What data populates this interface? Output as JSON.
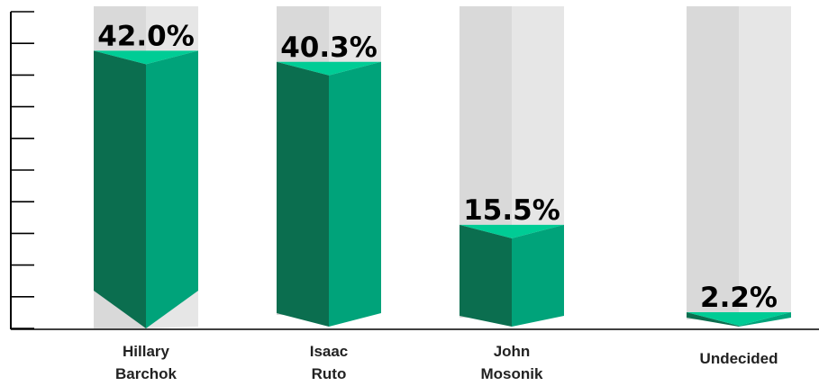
{
  "chart_data": {
    "type": "bar",
    "categories": [
      [
        "Hillary",
        "Barchok"
      ],
      [
        "Isaac",
        "Ruto"
      ],
      [
        "John",
        "Mosonik"
      ],
      [
        "Undecided"
      ]
    ],
    "values": [
      42.0,
      40.3,
      15.5,
      2.2
    ],
    "value_labels": [
      "42.0%",
      "40.3%",
      "15.5%",
      "2.2%"
    ],
    "title": "",
    "xlabel": "",
    "ylabel": "",
    "ylim": [
      0,
      45
    ],
    "grid": false,
    "legend": "none",
    "colors": {
      "bar_dark": "#0b6e4f",
      "bar_light": "#00a37a",
      "bar_top": "#00cc95",
      "track_left": "#d9d9d9",
      "track_right": "#e6e6e6",
      "axis": "#000000"
    }
  }
}
